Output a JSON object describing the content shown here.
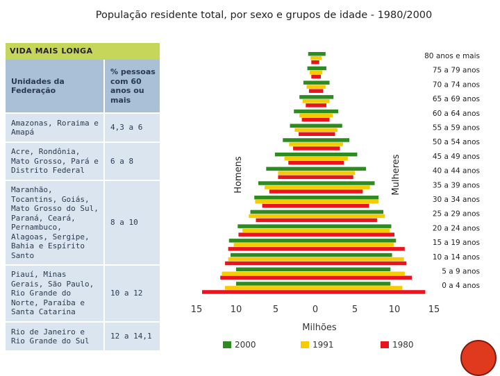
{
  "title": "População residente total, por sexo e grupos de idade - 1980/2000",
  "panel": {
    "header": "VIDA MAIS LONGA",
    "col_headers": [
      "Unidades da Federação",
      "% pessoas com 60 anos ou mais"
    ],
    "rows": [
      {
        "region": "Amazonas, Roraima e Amapá",
        "value": "4,3 a 6"
      },
      {
        "region": "Acre, Rondônia, Mato Grosso, Pará e Distrito Federal",
        "value": "6 a 8"
      },
      {
        "region": "Maranhão, Tocantins, Goiás, Mato Grosso do Sul, Paraná, Ceará, Pernambuco, Alagoas, Sergipe, Bahia e Espírito Santo",
        "value": "8 a 10"
      },
      {
        "region": "Piauí, Minas Gerais, São Paulo, Rio Grande do Norte, Paraíba e Santa Catarina",
        "value": "10 a 12"
      },
      {
        "region": "Rio de Janeiro e Rio Grande do Sul",
        "value": "12 a 14,1"
      }
    ]
  },
  "chart_data": {
    "type": "bar",
    "orientation": "horizontal-population-pyramid",
    "side_labels": {
      "left": "Homens",
      "right": "Mulheres"
    },
    "xlabel": "Milhões",
    "xlim": [
      -15,
      15
    ],
    "x_ticks": [
      -15,
      -10,
      -5,
      0,
      5,
      10,
      15
    ],
    "x_tick_labels": [
      "15",
      "10",
      "5",
      "0",
      "5",
      "10",
      "15"
    ],
    "categories": [
      "80 anos e mais",
      "75 a 79 anos",
      "70 a 74 anos",
      "65 a 69 anos",
      "60 a 64 anos",
      "55 a 59 anos",
      "50 a 54 anos",
      "45 a 49 anos",
      "40 a 44 anos",
      "35 a 39 anos",
      "30 a 34 anos",
      "25 a 29 anos",
      "20 a 24 anos",
      "15 a 19 anos",
      "10 a 14 anos",
      "5 a 9 anos",
      "0 a 4 anos"
    ],
    "series": [
      {
        "name": "2000",
        "color": "#2e8b1f",
        "male": [
          0.9,
          1.0,
          1.5,
          2.0,
          2.7,
          3.2,
          4.1,
          5.1,
          6.2,
          7.2,
          7.7,
          8.2,
          9.8,
          10.9,
          10.7,
          10.0,
          10.0
        ],
        "female": [
          1.3,
          1.4,
          1.8,
          2.3,
          2.9,
          3.4,
          4.3,
          5.3,
          6.4,
          7.5,
          8.0,
          8.6,
          9.6,
          10.2,
          9.7,
          9.5,
          9.5
        ]
      },
      {
        "name": "1991",
        "color": "#f6cc00",
        "male": [
          0.6,
          0.7,
          1.1,
          1.6,
          2.0,
          2.6,
          3.3,
          3.9,
          4.7,
          6.4,
          7.6,
          8.4,
          9.2,
          10.3,
          11.0,
          11.8,
          11.4
        ],
        "female": [
          0.8,
          0.9,
          1.3,
          1.8,
          2.2,
          2.8,
          3.5,
          4.1,
          5.0,
          6.9,
          8.0,
          8.8,
          9.4,
          9.9,
          11.2,
          11.3,
          11.0
        ]
      },
      {
        "name": "1980",
        "color": "#e8141e",
        "male": [
          0.5,
          0.5,
          0.8,
          1.2,
          1.7,
          2.1,
          2.8,
          3.4,
          4.7,
          5.8,
          6.7,
          7.5,
          9.7,
          11.0,
          11.4,
          12.0,
          14.3
        ],
        "female": [
          0.5,
          0.7,
          1.0,
          1.4,
          1.8,
          2.5,
          3.1,
          3.6,
          4.8,
          6.0,
          6.8,
          7.8,
          10.0,
          11.3,
          11.5,
          12.2,
          13.9
        ]
      }
    ],
    "legend": [
      "2000",
      "1991",
      "1980"
    ],
    "legend_position": "bottom"
  }
}
